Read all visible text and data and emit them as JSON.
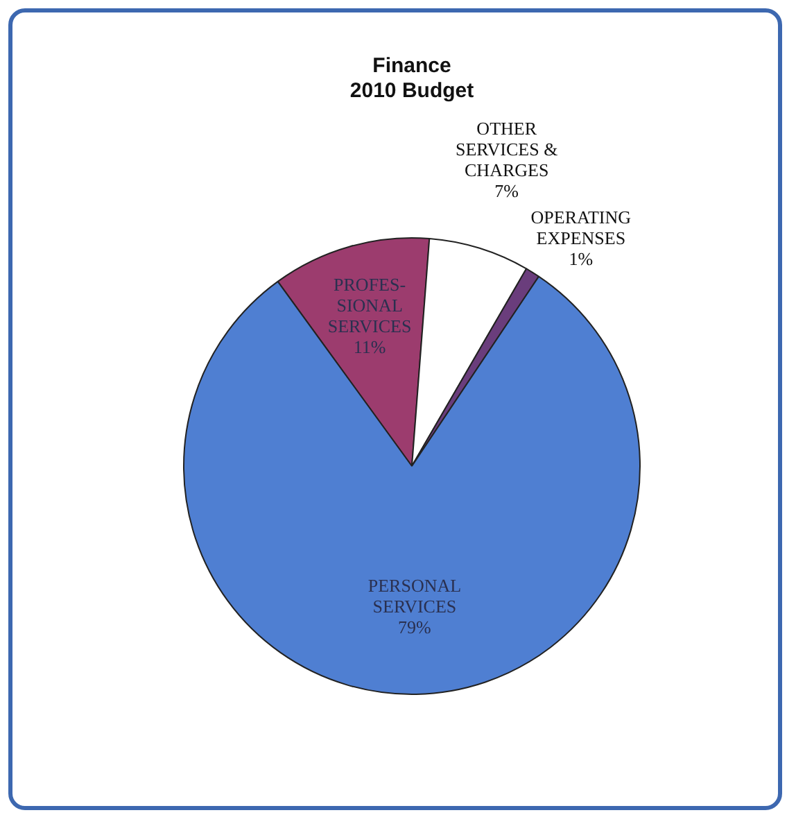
{
  "chart_data": {
    "type": "pie",
    "title": "Finance\n2010 Budget",
    "categories": [
      "PROFES-\nSIONAL\nSERVICES",
      "OTHER\nSERVICES &\nCHARGES",
      "OPERATING\nEXPENSES",
      "PERSONAL\nSERVICES"
    ],
    "values": [
      11,
      7,
      1,
      79
    ],
    "colors": [
      "#9c3c6e",
      "#ffffff",
      "#6a3d7c",
      "#4f7fd2"
    ],
    "value_labels": [
      "11%",
      "7%",
      "1%",
      "79%"
    ],
    "legend": false
  }
}
